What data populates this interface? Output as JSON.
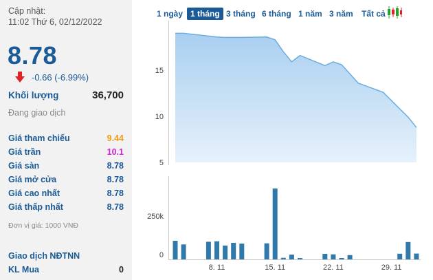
{
  "quote": {
    "updated_label": "Cập nhật:",
    "updated_time": "11:02 Thứ 6, 02/12/2022",
    "price": "8.78",
    "change": "-0.66 (-6.99%)",
    "volume_label": "Khối lượng",
    "volume_value": "36,700",
    "status": "Đang giao dịch",
    "down_color": "#e02424",
    "price_color": "#1a5a96"
  },
  "stats": [
    {
      "label": "Giá tham chiếu",
      "value": "9.44",
      "color": "#f29b12"
    },
    {
      "label": "Giá trần",
      "value": "10.1",
      "color": "#d81fd8"
    },
    {
      "label": "Giá sàn",
      "value": "8.78",
      "color": "#1a5a96"
    },
    {
      "label": "Giá mở cửa",
      "value": "8.78",
      "color": "#1a5a96"
    },
    {
      "label": "Giá cao nhất",
      "value": "8.78",
      "color": "#1a5a96"
    },
    {
      "label": "Giá thấp nhất",
      "value": "8.78",
      "color": "#1a5a96"
    }
  ],
  "unit_note": "Đơn vị giá: 1000 VNĐ",
  "foreign": {
    "title": "Giao dịch NĐTNN",
    "buy_label": "KL Mua",
    "buy_value": "0"
  },
  "tabs": [
    {
      "label": "1 ngày",
      "active": false
    },
    {
      "label": "1 tháng",
      "active": true
    },
    {
      "label": "3 tháng",
      "active": false
    },
    {
      "label": "6 tháng",
      "active": false
    },
    {
      "label": "1 năm",
      "active": false
    },
    {
      "label": "3 năm",
      "active": false
    },
    {
      "label": "Tất cả",
      "active": false
    }
  ],
  "icons": {
    "chart_toggle": "candlestick-icon",
    "change_direction": "down-arrow-icon"
  },
  "chart_data": [
    {
      "type": "area",
      "x": [
        "2022-11-03",
        "2022-11-04",
        "2022-11-07",
        "2022-11-08",
        "2022-11-09",
        "2022-11-10",
        "2022-11-11",
        "2022-11-14",
        "2022-11-15",
        "2022-11-16",
        "2022-11-17",
        "2022-11-18",
        "2022-11-21",
        "2022-11-22",
        "2022-11-23",
        "2022-11-24",
        "2022-11-25",
        "2022-11-28",
        "2022-11-29",
        "2022-11-30",
        "2022-12-01",
        "2022-12-02"
      ],
      "series": [
        {
          "values": [
            19.0,
            19.0,
            18.7,
            18.6,
            18.55,
            18.55,
            18.55,
            18.6,
            18.3,
            17.0,
            15.9,
            16.6,
            15.5,
            15.9,
            15.6,
            14.6,
            13.6,
            12.6,
            11.7,
            10.8,
            9.9,
            8.78
          ]
        }
      ],
      "y_ticks": [
        "5",
        "10",
        "15"
      ],
      "ylim": [
        5,
        20
      ],
      "color": "#6aaee0",
      "grid": false
    },
    {
      "type": "bar",
      "x": [
        "2022-11-03",
        "2022-11-04",
        "2022-11-07",
        "2022-11-08",
        "2022-11-09",
        "2022-11-10",
        "2022-11-11",
        "2022-11-14",
        "2022-11-15",
        "2022-11-16",
        "2022-11-17",
        "2022-11-18",
        "2022-11-21",
        "2022-11-22",
        "2022-11-23",
        "2022-11-24",
        "2022-11-25",
        "2022-11-28",
        "2022-11-29",
        "2022-11-30",
        "2022-12-01",
        "2022-12-02"
      ],
      "series": [
        {
          "values": [
            118000,
            95000,
            112000,
            115000,
            88000,
            105000,
            100000,
            102000,
            450000,
            10000,
            30000,
            8000,
            35000,
            32000,
            8000,
            27000,
            0,
            0,
            0,
            36000,
            110000,
            36700
          ]
        }
      ],
      "x_ticks": [
        {
          "date": "2022-11-08",
          "label": "8. 11"
        },
        {
          "date": "2022-11-15",
          "label": "15. 11"
        },
        {
          "date": "2022-11-22",
          "label": "22. 11"
        },
        {
          "date": "2022-11-29",
          "label": "29. 11"
        }
      ],
      "y_ticks": [
        "0",
        "250k"
      ],
      "ylim": [
        0,
        500000
      ],
      "color": "#2f7aaa",
      "grid": false
    }
  ]
}
